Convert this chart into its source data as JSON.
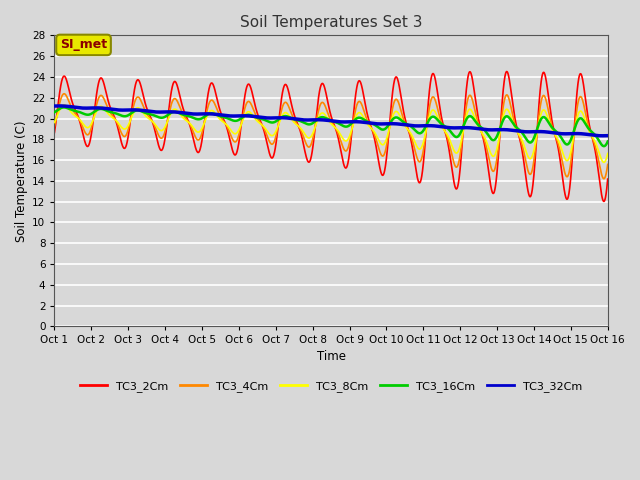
{
  "title": "Soil Temperatures Set 3",
  "xlabel": "Time",
  "ylabel": "Soil Temperature (C)",
  "xlim": [
    0,
    15
  ],
  "ylim": [
    0,
    28
  ],
  "yticks": [
    0,
    2,
    4,
    6,
    8,
    10,
    12,
    14,
    16,
    18,
    20,
    22,
    24,
    26,
    28
  ],
  "xtick_labels": [
    "Oct 1",
    "Oct 2",
    "Oct 3",
    "Oct 4",
    "Oct 5",
    "Oct 6",
    "Oct 7",
    "Oct 8",
    "Oct 9",
    "Oct 10",
    "Oct 11",
    "Oct 12",
    "Oct 13",
    "Oct 14",
    "Oct 15",
    "Oct 16"
  ],
  "plot_bg_color": "#d8d8d8",
  "fig_bg_color": "#d8d8d8",
  "grid_color": "#ffffff",
  "annotation_text": "SI_met",
  "annotation_color": "#8b0000",
  "annotation_bg": "#e8e800",
  "series_colors": {
    "TC3_2Cm": "#ff0000",
    "TC3_4Cm": "#ff8800",
    "TC3_8Cm": "#ffff00",
    "TC3_16Cm": "#00cc00",
    "TC3_32Cm": "#0000cc"
  },
  "series_linewidths": {
    "TC3_2Cm": 1.2,
    "TC3_4Cm": 1.2,
    "TC3_8Cm": 1.2,
    "TC3_16Cm": 1.8,
    "TC3_32Cm": 2.5
  }
}
